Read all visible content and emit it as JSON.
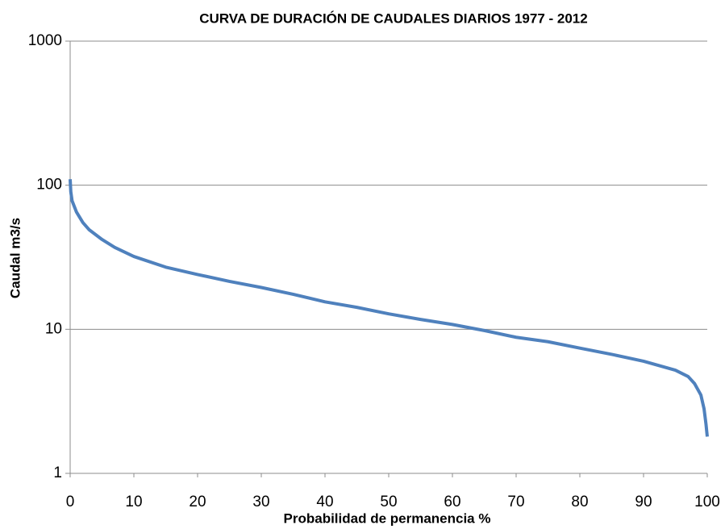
{
  "chart_data": {
    "type": "line",
    "title": "CURVA DE DURACIÓN DE CAUDALES DIARIOS 1977 - 2012",
    "x_label": "Probabilidad de permanencia %",
    "y_label": "Caudal  m3/s",
    "log_y": true,
    "grid": true,
    "xlim": [
      0,
      100
    ],
    "xticks": [
      0,
      10,
      20,
      30,
      40,
      50,
      60,
      70,
      80,
      90,
      100
    ],
    "ylim": [
      1,
      1000
    ],
    "yticks": [
      1,
      10,
      100,
      1000
    ],
    "series": [
      {
        "name": "Caudal",
        "color": "#4f81bd",
        "x": [
          0,
          0.1,
          0.3,
          1,
          2,
          3,
          5,
          7,
          10,
          15,
          20,
          25,
          30,
          35,
          40,
          45,
          50,
          55,
          60,
          65,
          70,
          75,
          80,
          85,
          90,
          95,
          97,
          98,
          99,
          99.5,
          99.8,
          100
        ],
        "values": [
          110,
          90,
          78,
          65,
          55,
          49,
          42,
          37,
          32,
          27,
          24,
          21.5,
          19.5,
          17.5,
          15.5,
          14.2,
          12.8,
          11.7,
          10.8,
          9.8,
          8.8,
          8.2,
          7.4,
          6.7,
          6,
          5.2,
          4.7,
          4.2,
          3.5,
          2.8,
          2.2,
          1.8
        ]
      }
    ]
  }
}
